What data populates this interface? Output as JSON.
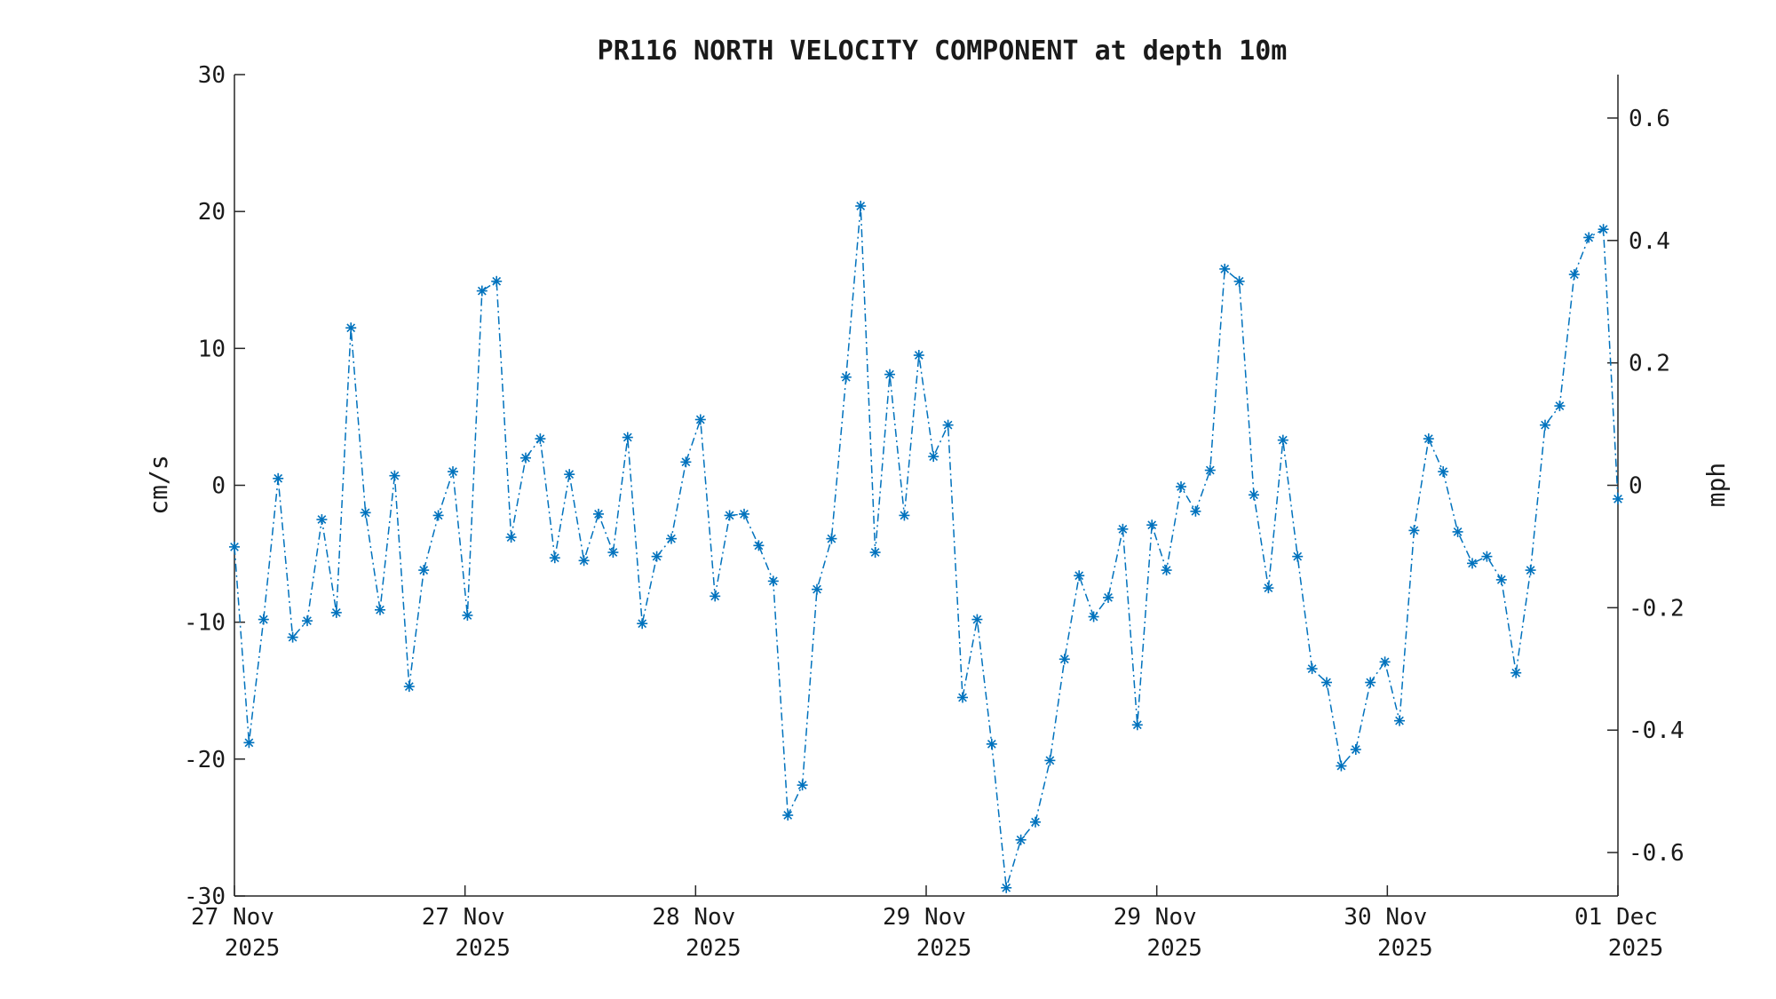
{
  "chart_data": {
    "type": "line",
    "title": "PR116 NORTH VELOCITY COMPONENT at depth 10m",
    "ylabel_left": "cm/s",
    "ylabel_right": "mph",
    "ylim_left": [
      -30,
      30
    ],
    "ylim_right": [
      -0.671,
      0.671
    ],
    "yticks_left": [
      "30",
      "20",
      "10",
      "0",
      "-10",
      "-20",
      "-30"
    ],
    "yticks_right": [
      "0.6",
      "0.4",
      "0.2",
      "0",
      "-0.2",
      "-0.4",
      "-0.6"
    ],
    "xticks": [
      {
        "line1": "27 Nov",
        "line2": "2025"
      },
      {
        "line1": "27 Nov",
        "line2": "2025"
      },
      {
        "line1": "28 Nov",
        "line2": "2025"
      },
      {
        "line1": "29 Nov",
        "line2": "2025"
      },
      {
        "line1": "29 Nov",
        "line2": "2025"
      },
      {
        "line1": "30 Nov",
        "line2": "2025"
      },
      {
        "line1": "01 Dec",
        "line2": "2025"
      }
    ],
    "line_style": "dash-dot",
    "marker": "asterisk",
    "series_color": "#0072BD",
    "grid": false,
    "series": [
      {
        "values": [
          -4.5,
          -18.8,
          -9.8,
          0.5,
          -11.1,
          -9.9,
          -2.5,
          -9.3,
          11.5,
          -2.0,
          -9.1,
          0.7,
          -14.7,
          -6.2,
          -2.2,
          1.0,
          -9.5,
          14.2,
          14.9,
          -3.8,
          2.0,
          3.4,
          -5.3,
          0.8,
          -5.5,
          -2.1,
          -4.9,
          3.5,
          -10.1,
          -5.2,
          -3.9,
          1.7,
          4.8,
          -8.1,
          -2.2,
          -2.1,
          -4.4,
          -7.0,
          -24.1,
          -21.9,
          -7.6,
          -3.9,
          7.9,
          20.4,
          -4.9,
          8.1,
          -2.2,
          9.5,
          2.1,
          4.4,
          -15.5,
          -9.8,
          -18.9,
          -29.4,
          -25.9,
          -24.6,
          -20.1,
          -12.7,
          -6.6,
          -9.6,
          -8.2,
          -3.2,
          -17.5,
          -2.9,
          -6.2,
          -0.1,
          -1.9,
          1.1,
          15.8,
          14.9,
          -0.7,
          -7.5,
          3.3,
          -5.2,
          -13.4,
          -14.4,
          -20.5,
          -19.3,
          -14.4,
          -12.9,
          -17.2,
          -3.3,
          3.4,
          1.0,
          -3.4,
          -5.7,
          -5.2,
          -6.9,
          -13.7,
          -6.2,
          4.4,
          5.8,
          15.4,
          18.1,
          18.7,
          -1.0
        ]
      }
    ]
  }
}
